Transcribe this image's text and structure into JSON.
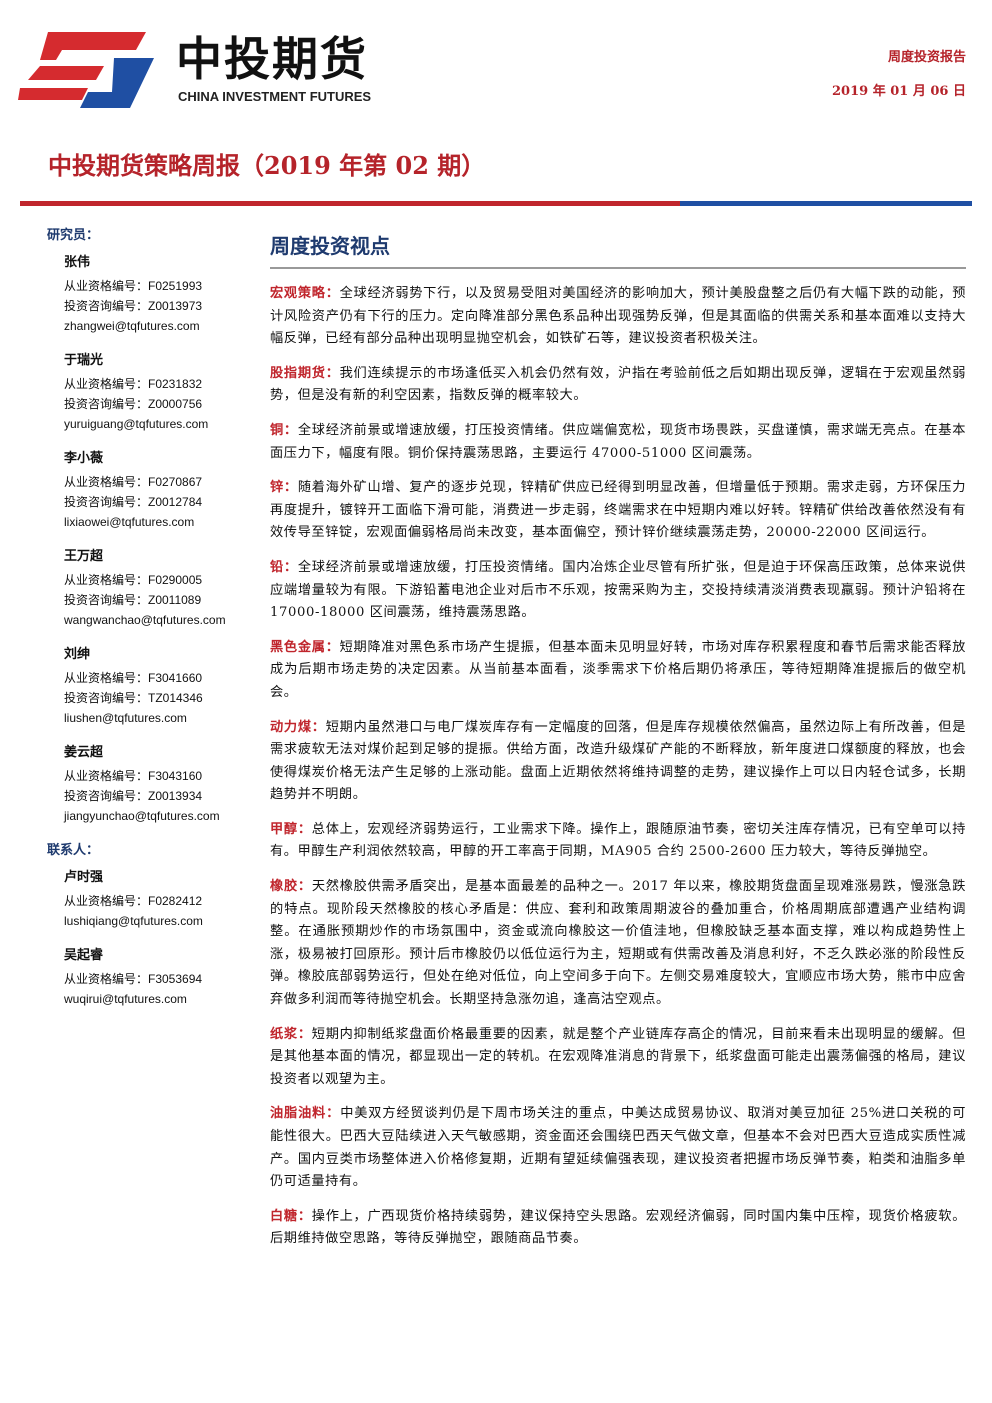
{
  "header": {
    "company_cn": "中投期货",
    "company_en": "CHINA INVESTMENT FUTURES",
    "report_type": "周度投资报告",
    "date": "2019 年 01 月 06 日"
  },
  "title": "中投期货策略周报（2019 年第 02 期）",
  "sidebar": {
    "researchers_label": "研究员：",
    "researchers": [
      {
        "name": "张伟",
        "lines": [
          "从业资格编号：F0251993",
          "投资咨询编号：Z0013973",
          "zhangwei@tqfutures.com"
        ]
      },
      {
        "name": "于瑞光",
        "lines": [
          "从业资格编号：F0231832",
          "投资咨询编号：Z0000756",
          "yuruiguang@tqfutures.com"
        ]
      },
      {
        "name": "李小薇",
        "lines": [
          "从业资格编号：F0270867",
          "投资咨询编号：Z0012784",
          "lixiaowei@tqfutures.com"
        ]
      },
      {
        "name": "王万超",
        "lines": [
          "从业资格编号：F0290005",
          "投资咨询编号：Z0011089",
          "wangwanchao@tqfutures.com"
        ]
      },
      {
        "name": "刘绅",
        "lines": [
          "从业资格编号：F3041660",
          "投资咨询编号：TZ014346",
          "liushen@tqfutures.com"
        ]
      },
      {
        "name": "姜云超",
        "lines": [
          "从业资格编号：F3043160",
          "投资咨询编号：Z0013934",
          "jiangyunchao@tqfutures.com"
        ]
      }
    ],
    "contacts_label": "联系人：",
    "contacts": [
      {
        "name": "卢时强",
        "lines": [
          "从业资格编号：F0282412",
          "lushiqiang@tqfutures.com"
        ]
      },
      {
        "name": "吴起睿",
        "lines": [
          "从业资格编号：F3053694",
          "wuqirui@tqfutures.com"
        ]
      }
    ]
  },
  "section": {
    "heading": "周度投资视点",
    "items": [
      {
        "label": "宏观策略：",
        "text": "全球经济弱势下行，以及贸易受阻对美国经济的影响加大，预计美股盘整之后仍有大幅下跌的动能，预计风险资产仍有下行的压力。定向降准部分黑色系品种出现强势反弹，但是其面临的供需关系和基本面难以支持大幅反弹，已经有部分品种出现明显抛空机会，如铁矿石等，建议投资者积极关注。"
      },
      {
        "label": "股指期货：",
        "text": "我们连续提示的市场逢低买入机会仍然有效，沪指在考验前低之后如期出现反弹，逻辑在于宏观虽然弱势，但是没有新的利空因素，指数反弹的概率较大。"
      },
      {
        "label": "铜：",
        "text": "全球经济前景或增速放缓，打压投资情绪。供应端偏宽松，现货市场畏跌，买盘谨慎，需求端无亮点。在基本面压力下，幅度有限。铜价保持震荡思路，主要运行 47000-51000 区间震荡。"
      },
      {
        "label": "锌：",
        "text": "随着海外矿山增、复产的逐步兑现，锌精矿供应已经得到明显改善，但增量低于预期。需求走弱，方环保压力再度提升，镀锌开工面临下滑可能，消费进一步走弱，终端需求在中短期内难以好转。锌精矿供给改善依然没有有效传导至锌锭，宏观面偏弱格局尚未改变，基本面偏空，预计锌价继续震荡走势，20000-22000 区间运行。"
      },
      {
        "label": "铅：",
        "text": "全球经济前景或增速放缓，打压投资情绪。国内冶炼企业尽管有所扩张，但是迫于环保高压政策，总体来说供应端增量较为有限。下游铅蓄电池企业对后市不乐观，按需采购为主，交投持续清淡消费表现羸弱。预计沪铅将在 17000-18000 区间震荡，维持震荡思路。"
      },
      {
        "label": "黑色金属：",
        "text": "短期降准对黑色系市场产生提振，但基本面未见明显好转，市场对库存积累程度和春节后需求能否释放成为后期市场走势的决定因素。从当前基本面看，淡季需求下价格后期仍将承压，等待短期降准提振后的做空机会。"
      },
      {
        "label": "动力煤：",
        "text": "短期内虽然港口与电厂煤炭库存有一定幅度的回落，但是库存规模依然偏高，虽然边际上有所改善，但是需求疲软无法对煤价起到足够的提振。供给方面，改造升级煤矿产能的不断释放，新年度进口煤额度的释放，也会使得煤炭价格无法产生足够的上涨动能。盘面上近期依然将维持调整的走势，建议操作上可以日内轻仓试多，长期趋势并不明朗。"
      },
      {
        "label": "甲醇：",
        "text": "总体上，宏观经济弱势运行，工业需求下降。操作上，跟随原油节奏，密切关注库存情况，已有空单可以持有。甲醇生产利润依然较高，甲醇的开工率高于同期，MA905 合约 2500-2600 压力较大，等待反弹抛空。"
      },
      {
        "label": "橡胶：",
        "text": "天然橡胶供需矛盾突出，是基本面最差的品种之一。2017 年以来，橡胶期货盘面呈现难涨易跌，慢涨急跌的特点。现阶段天然橡胶的核心矛盾是：供应、套利和政策周期波谷的叠加重合，价格周期底部遭遇产业结构调整。在通胀预期炒作的市场氛围中，资金或流向橡胶这一价值洼地，但橡胶缺乏基本面支撑，难以构成趋势性上涨，极易被打回原形。预计后市橡胶仍以低位运行为主，短期或有供需改善及消息利好，不乏久跌必涨的阶段性反弹。橡胶底部弱势运行，但处在绝对低位，向上空间多于向下。左侧交易难度较大，宜顺应市场大势，熊市中应舍弃做多利润而等待抛空机会。长期坚持急涨勿追，逢高沽空观点。"
      },
      {
        "label": "纸浆：",
        "text": "短期内抑制纸浆盘面价格最重要的因素，就是整个产业链库存高企的情况，目前来看未出现明显的缓解。但是其他基本面的情况，都显现出一定的转机。在宏观降准消息的背景下，纸浆盘面可能走出震荡偏强的格局，建议投资者以观望为主。"
      },
      {
        "label": "油脂油料：",
        "text": "中美双方经贸谈判仍是下周市场关注的重点，中美达成贸易协议、取消对美豆加征 25%进口关税的可能性很大。巴西大豆陆续进入天气敏感期，资金面还会围绕巴西天气做文章，但基本不会对巴西大豆造成实质性减产。国内豆类市场整体进入价格修复期，近期有望延续偏强表现，建议投资者把握市场反弹节奏，粕类和油脂多单仍可适量持有。"
      },
      {
        "label": "白糖：",
        "text": "操作上，广西现货价格持续弱势，建议保持空头思路。宏观经济偏弱，同时国内集中压榨，现货价格疲软。后期维持做空思路，等待反弹抛空，跟随商品节奏。"
      }
    ]
  }
}
